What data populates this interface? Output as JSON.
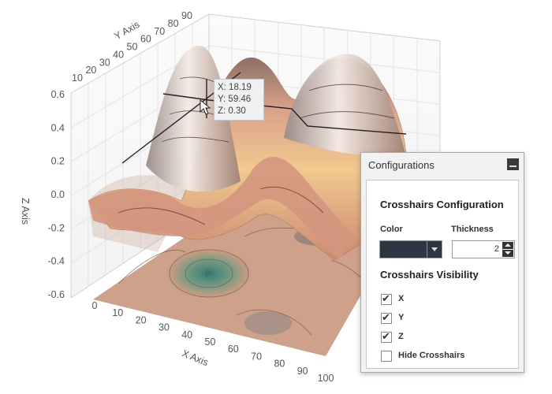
{
  "chart_data": {
    "type": "surface3d",
    "z_axis": {
      "title": "Z Axis",
      "ticks": [
        "0.6",
        "0.4",
        "0.2",
        "0.0",
        "-0.2",
        "-0.4",
        "-0.6"
      ],
      "range": [
        -0.6,
        0.6
      ]
    },
    "x_axis": {
      "title": "X Axis",
      "ticks": [
        "0",
        "10",
        "20",
        "30",
        "40",
        "50",
        "60",
        "70",
        "80",
        "90",
        "100"
      ],
      "range": [
        0,
        100
      ]
    },
    "y_axis": {
      "title": "Y Axis",
      "ticks": [
        "10",
        "20",
        "30",
        "40",
        "50",
        "60",
        "70",
        "80",
        "90"
      ],
      "range": [
        0,
        90
      ]
    },
    "grid": true,
    "crosshair": {
      "x": 18.19,
      "y": 59.46,
      "z": 0.3
    }
  },
  "tooltip": {
    "x_line": "X: 18.19",
    "y_line": "Y: 59.46",
    "z_line": "Z: 0.30"
  },
  "panel": {
    "title": "Configurations",
    "crosshairs_config_title": "Crosshairs Configuration",
    "color_label": "Color",
    "thickness_label": "Thickness",
    "color_value": "#2c3744",
    "thickness_value": "2",
    "visibility_title": "Crosshairs Visibility",
    "checkboxes": [
      {
        "label": "X",
        "checked": true
      },
      {
        "label": "Y",
        "checked": true
      },
      {
        "label": "Z",
        "checked": true
      },
      {
        "label": "Hide Crosshairs",
        "checked": false
      }
    ]
  }
}
